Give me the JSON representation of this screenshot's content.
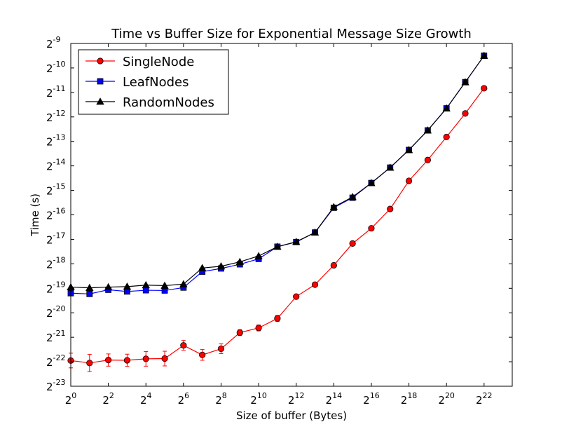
{
  "chart_data": {
    "type": "line",
    "title": "Time vs Buffer Size for Exponential Message Size Growth",
    "xlabel": "Size of buffer (Bytes)",
    "ylabel": "Time (s)",
    "x_scale": "log2",
    "y_scale": "log2",
    "xlim_exp": [
      0,
      23.5
    ],
    "ylim_exp": [
      -23,
      -9
    ],
    "x_tick_base": "2",
    "x_tick_exps": [
      "0",
      "2",
      "4",
      "6",
      "8",
      "10",
      "12",
      "14",
      "16",
      "18",
      "20",
      "22"
    ],
    "y_tick_base": "2",
    "y_tick_exps": [
      "-9",
      "-10",
      "-11",
      "-12",
      "-13",
      "-14",
      "-15",
      "-16",
      "-17",
      "-18",
      "-19",
      "-20",
      "-21",
      "-22",
      "-23"
    ],
    "x_exponents": [
      0,
      1,
      2,
      3,
      4,
      5,
      6,
      7,
      8,
      9,
      10,
      11,
      12,
      13,
      14,
      15,
      16,
      17,
      18,
      19,
      20,
      21,
      22
    ],
    "legend_position": "top-left",
    "grid": false,
    "series": [
      {
        "name": "SingleNode",
        "color": "#ff0000",
        "marker": "circle",
        "y_exponents": [
          -21.95,
          -22.05,
          -21.93,
          -21.94,
          -21.88,
          -21.87,
          -21.33,
          -21.72,
          -21.47,
          -20.81,
          -20.62,
          -20.23,
          -19.34,
          -18.85,
          -18.06,
          -17.17,
          -16.55,
          -15.76,
          -14.61,
          -13.76,
          -12.82,
          -11.86,
          -10.83
        ],
        "y_err_exponents": [
          0.3,
          0.35,
          0.25,
          0.25,
          0.3,
          0.3,
          0.2,
          0.22,
          0.2,
          0.12,
          0.12,
          0.12,
          0.05,
          0.05,
          0.05,
          0.05,
          0.05,
          0.05,
          0.05,
          0.05,
          0.05,
          0.05,
          0.05
        ]
      },
      {
        "name": "LeafNodes",
        "color": "#0000ff",
        "marker": "square",
        "y_exponents": [
          -19.2,
          -19.23,
          -19.06,
          -19.13,
          -19.08,
          -19.09,
          -18.97,
          -18.32,
          -18.19,
          -18.02,
          -17.8,
          -17.3,
          -17.11,
          -16.72,
          -15.71,
          -15.3,
          -14.7,
          -14.07,
          -13.35,
          -12.55,
          -11.65,
          -10.58,
          -9.5
        ]
      },
      {
        "name": "RandomNodes",
        "color": "#000000",
        "marker": "triangle",
        "y_exponents": [
          -18.95,
          -18.98,
          -18.95,
          -18.93,
          -18.87,
          -18.89,
          -18.83,
          -18.17,
          -18.1,
          -17.92,
          -17.68,
          -17.3,
          -17.1,
          -16.72,
          -15.68,
          -15.27,
          -14.7,
          -14.07,
          -13.35,
          -12.55,
          -11.65,
          -10.58,
          -9.5
        ]
      }
    ]
  }
}
